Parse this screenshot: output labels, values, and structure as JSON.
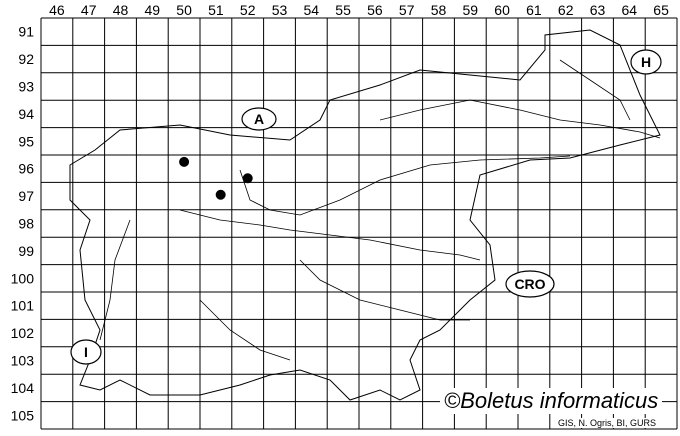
{
  "map": {
    "columns": [
      "46",
      "47",
      "48",
      "49",
      "50",
      "51",
      "52",
      "53",
      "54",
      "55",
      "56",
      "57",
      "58",
      "59",
      "60",
      "61",
      "62",
      "63",
      "64",
      "65"
    ],
    "rows": [
      "91",
      "92",
      "93",
      "94",
      "95",
      "96",
      "97",
      "98",
      "99",
      "100",
      "101",
      "102",
      "103",
      "104",
      "105"
    ],
    "country_labels": [
      {
        "id": "A",
        "text": "A"
      },
      {
        "id": "H",
        "text": "H"
      },
      {
        "id": "CRO",
        "text": "CRO"
      },
      {
        "id": "I",
        "text": "I"
      }
    ],
    "records": [
      {
        "col": "50",
        "row": "96"
      },
      {
        "col": "52",
        "row": "96"
      },
      {
        "col": "51",
        "row": "97"
      }
    ],
    "record_color": "#000000"
  },
  "credit": "©Boletus informaticus",
  "source": "GIS, N. Ogris, BI, GURS"
}
